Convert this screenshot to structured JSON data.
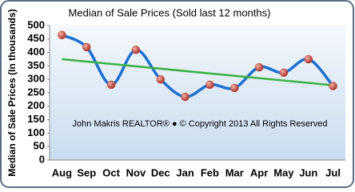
{
  "chart_data": {
    "type": "line",
    "title": "Median of Sale Prices (Sold last 12 months)",
    "y_label": "Median of Sale Prices (In thousands)",
    "annotation": "John Makris REALTOR®  ●  © Copyright 2013 All Rights Reserved",
    "categories": [
      "Aug",
      "Sep",
      "Oct",
      "Nov",
      "Dec",
      "Jan",
      "Feb",
      "Mar",
      "Apr",
      "May",
      "Jun",
      "Jul"
    ],
    "values": [
      465,
      420,
      280,
      410,
      300,
      235,
      280,
      268,
      345,
      325,
      375,
      275
    ],
    "color": "#1f6fd0",
    "marker_color": "#c0392b",
    "trend": {
      "color": "#3cb043",
      "start": 375,
      "end": 278
    },
    "ylim": [
      0,
      500
    ],
    "yticks": [
      0,
      50,
      100,
      150,
      200,
      250,
      300,
      350,
      400,
      450,
      500
    ]
  }
}
